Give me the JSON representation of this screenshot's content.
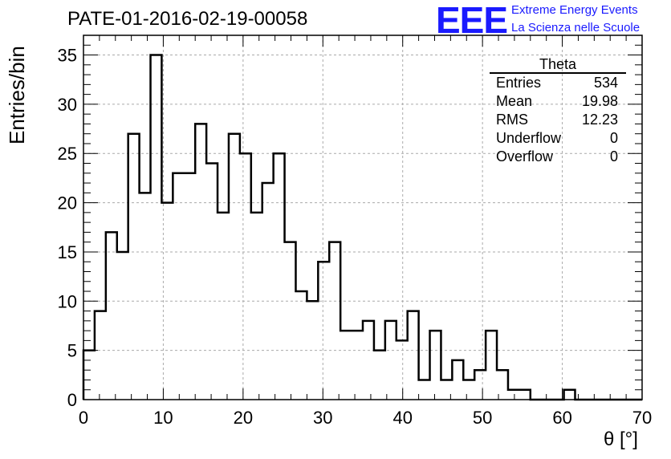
{
  "title": "PATE-01-2016-02-19-00058",
  "logo": {
    "mark": "EEE",
    "line1": "Extreme Energy Events",
    "line2": "La Scienza nelle Scuole"
  },
  "stats": {
    "name": "Theta",
    "rows": [
      {
        "label": "Entries",
        "value": "534"
      },
      {
        "label": "Mean",
        "value": "19.98"
      },
      {
        "label": "RMS",
        "value": "12.23"
      },
      {
        "label": "Underflow",
        "value": "0"
      },
      {
        "label": "Overflow",
        "value": "0"
      }
    ]
  },
  "colors": {
    "line": "#000000",
    "grid": "#aaaaaa",
    "logo": "#1a1aff"
  },
  "chart_data": {
    "type": "bar",
    "title": "PATE-01-2016-02-19-00058",
    "xlabel": "θ [°]",
    "ylabel": "Entries/bin",
    "xlim": [
      0,
      70
    ],
    "ylim": [
      0,
      37
    ],
    "bin_width": 1.4,
    "x_ticks": [
      0,
      10,
      20,
      30,
      40,
      50,
      60,
      70
    ],
    "y_ticks": [
      0,
      5,
      10,
      15,
      20,
      25,
      30,
      35
    ],
    "grid": true,
    "bins_x_start": [
      0,
      1.4,
      2.8,
      4.2,
      5.6,
      7.0,
      8.4,
      9.8,
      11.2,
      12.6,
      14.0,
      15.4,
      16.8,
      18.2,
      19.6,
      21.0,
      22.4,
      23.8,
      25.2,
      26.6,
      28.0,
      29.4,
      30.8,
      32.2,
      33.6,
      35.0,
      36.4,
      37.8,
      39.2,
      40.6,
      42.0,
      43.4,
      44.8,
      46.2,
      47.6,
      49.0,
      50.4,
      51.8,
      53.2,
      54.6,
      56.0,
      57.4,
      58.8,
      60.2,
      61.6,
      63.0,
      64.4,
      65.8,
      67.2,
      68.6
    ],
    "values": [
      5,
      9,
      17,
      15,
      27,
      21,
      35,
      20,
      23,
      23,
      28,
      24,
      19,
      27,
      25,
      19,
      22,
      25,
      16,
      11,
      10,
      14,
      16,
      7,
      7,
      8,
      5,
      8,
      6,
      9,
      2,
      7,
      2,
      4,
      2,
      3,
      7,
      3,
      1,
      1,
      0,
      0,
      0,
      1,
      0,
      0,
      0,
      0,
      0,
      0
    ]
  }
}
